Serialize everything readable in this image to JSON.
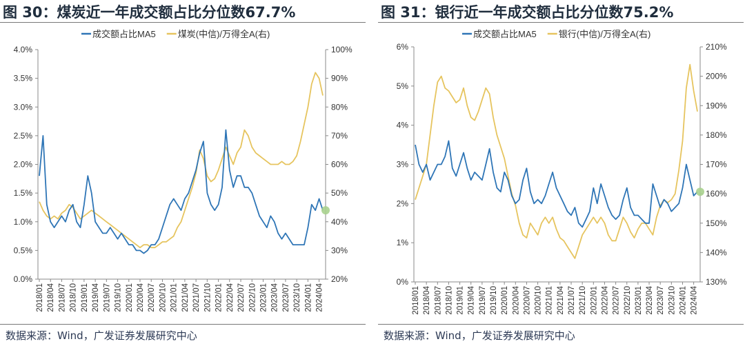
{
  "chart_data": [
    {
      "type": "line",
      "title": "图 30：煤炭近一年成交额占比分位数67.7%",
      "source": "数据来源：Wind，广发证券发展研究中心",
      "x_ticks": [
        "2018/01",
        "2018/04",
        "2018/07",
        "2018/10",
        "2019/01",
        "2019/04",
        "2019/07",
        "2019/10",
        "2020/01",
        "2020/04",
        "2020/07",
        "2020/10",
        "2021/01",
        "2021/04",
        "2021/07",
        "2021/10",
        "2022/01",
        "2022/04",
        "2022/07",
        "2022/10",
        "2023/01",
        "2023/04",
        "2023/07",
        "2023/10",
        "2024/01",
        "2024/04"
      ],
      "y_left": {
        "range": [
          0,
          4.0
        ],
        "ticks": [
          "0.0%",
          "0.5%",
          "1.0%",
          "1.5%",
          "2.0%",
          "2.5%",
          "3.0%",
          "3.5%",
          "4.0%"
        ]
      },
      "y_right": {
        "range": [
          20,
          100
        ],
        "ticks": [
          "20%",
          "30%",
          "40%",
          "50%",
          "60%",
          "70%",
          "80%",
          "90%",
          "100%"
        ]
      },
      "legend_position": "top",
      "series": [
        {
          "name": "成交额占比MA5",
          "axis": "left",
          "color": "#2e75b6",
          "values": [
            1.8,
            2.5,
            1.3,
            1.0,
            0.9,
            1.0,
            1.1,
            1.0,
            1.2,
            1.3,
            1.0,
            0.9,
            1.3,
            1.8,
            1.5,
            1.0,
            0.9,
            0.8,
            0.8,
            0.9,
            0.8,
            0.7,
            0.8,
            0.7,
            0.6,
            0.6,
            0.5,
            0.5,
            0.45,
            0.5,
            0.6,
            0.6,
            0.7,
            0.9,
            1.1,
            1.3,
            1.4,
            1.3,
            1.2,
            1.4,
            1.5,
            1.7,
            1.9,
            2.2,
            2.4,
            1.5,
            1.3,
            1.2,
            1.3,
            1.6,
            2.6,
            1.9,
            1.6,
            1.8,
            1.8,
            1.6,
            1.6,
            1.5,
            1.3,
            1.1,
            1.0,
            0.9,
            1.1,
            1.0,
            0.8,
            0.7,
            0.8,
            0.7,
            0.6,
            0.6,
            0.6,
            0.6,
            0.9,
            1.3,
            1.2,
            1.4,
            1.2
          ]
        },
        {
          "name": "煤炭(中信)/万得全A(右)",
          "axis": "right",
          "color": "#e6c45e",
          "values": [
            47,
            44,
            42,
            41,
            42,
            41,
            43,
            44,
            46,
            45,
            43,
            41,
            42,
            43,
            44,
            43,
            42,
            41,
            40,
            39,
            38,
            37,
            36,
            35,
            34,
            33,
            32,
            31,
            32,
            32,
            31,
            31,
            32,
            33,
            33,
            34,
            35,
            38,
            40,
            44,
            48,
            52,
            57,
            65,
            62,
            56,
            54,
            55,
            58,
            62,
            66,
            63,
            60,
            64,
            66,
            72,
            70,
            66,
            64,
            63,
            62,
            61,
            60,
            60,
            60,
            61,
            60,
            60,
            61,
            63,
            68,
            74,
            80,
            88,
            92,
            90,
            84
          ]
        }
      ]
    },
    {
      "type": "line",
      "title": "图 31：银行近一年成交额占比分位数75.2%",
      "source": "数据来源：Wind，广发证券发展研究中心",
      "x_ticks": [
        "2018/01",
        "2018/04",
        "2018/07",
        "2018/10",
        "2019/01",
        "2019/04",
        "2019/07",
        "2019/10",
        "2020/01",
        "2020/04",
        "2020/07",
        "2020/10",
        "2021/01",
        "2021/04",
        "2021/07",
        "2021/10",
        "2022/01",
        "2022/04",
        "2022/07",
        "2022/10",
        "2023/01",
        "2023/04",
        "2023/07",
        "2023/10",
        "2024/01",
        "2024/04"
      ],
      "y_left": {
        "range": [
          0,
          6
        ],
        "ticks": [
          "0%",
          "1%",
          "2%",
          "3%",
          "4%",
          "5%",
          "6%"
        ]
      },
      "y_right": {
        "range": [
          130,
          210
        ],
        "ticks": [
          "130%",
          "140%",
          "150%",
          "160%",
          "170%",
          "180%",
          "190%",
          "200%",
          "210%"
        ]
      },
      "legend_position": "top",
      "series": [
        {
          "name": "成交额占比MA5",
          "axis": "left",
          "color": "#2e75b6",
          "values": [
            3.5,
            3.0,
            2.8,
            3.0,
            2.6,
            2.8,
            3.0,
            3.0,
            3.2,
            3.6,
            2.9,
            2.7,
            3.0,
            3.3,
            2.9,
            2.6,
            2.8,
            2.7,
            2.6,
            3.0,
            3.4,
            2.8,
            2.4,
            2.3,
            2.8,
            2.6,
            2.2,
            2.0,
            2.1,
            2.6,
            2.9,
            2.3,
            2.0,
            2.1,
            2.0,
            2.2,
            2.5,
            2.8,
            2.4,
            2.2,
            2.0,
            1.8,
            1.7,
            1.9,
            1.5,
            1.4,
            1.6,
            1.8,
            2.4,
            2.0,
            2.5,
            2.2,
            1.9,
            1.7,
            1.6,
            1.7,
            2.1,
            2.4,
            1.9,
            1.7,
            1.7,
            1.6,
            1.5,
            1.5,
            2.5,
            2.2,
            1.9,
            2.1,
            2.0,
            1.8,
            1.9,
            2.0,
            2.4,
            3.0,
            2.6,
            2.2,
            2.3
          ]
        },
        {
          "name": "银行(中信)/万得全A(右)",
          "axis": "right",
          "color": "#e6c45e",
          "values": [
            158,
            162,
            166,
            170,
            180,
            190,
            198,
            200,
            196,
            195,
            193,
            191,
            192,
            196,
            190,
            186,
            185,
            188,
            192,
            196,
            194,
            186,
            180,
            176,
            172,
            166,
            160,
            156,
            150,
            146,
            145,
            150,
            148,
            146,
            150,
            152,
            150,
            152,
            148,
            145,
            144,
            142,
            140,
            138,
            142,
            146,
            148,
            150,
            152,
            150,
            152,
            150,
            146,
            144,
            144,
            148,
            152,
            150,
            147,
            145,
            148,
            150,
            150,
            148,
            146,
            152,
            156,
            158,
            157,
            158,
            160,
            168,
            178,
            196,
            204,
            195,
            188
          ]
        }
      ]
    }
  ]
}
